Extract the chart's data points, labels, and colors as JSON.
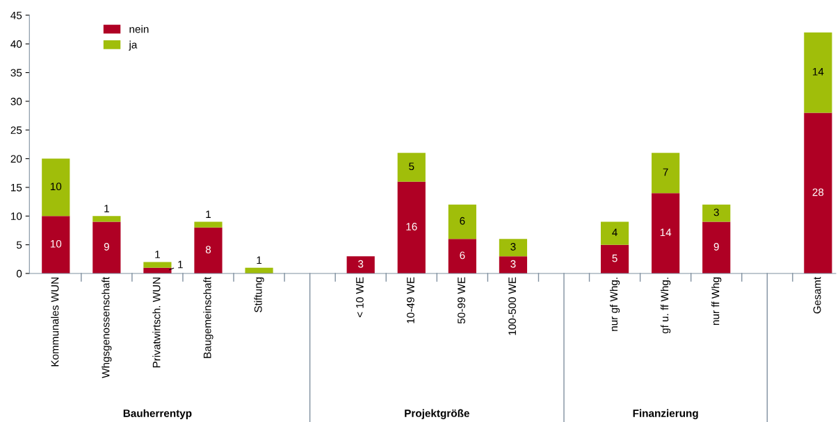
{
  "chart_data": {
    "type": "bar",
    "stacked": true,
    "categories": [
      "Kommunales WUN",
      "Whgsgenossenschaft",
      "Privatwirtsch. WUN",
      "Baugemeinschaft",
      "Stiftung",
      null,
      "< 10 WE",
      "10-49 WE",
      "50-99 WE",
      "100-500 WE",
      null,
      "nur gf Whg.",
      "gf u. ff Whg.",
      "nur ff Whg",
      null,
      "Gesamt"
    ],
    "series": [
      {
        "name": "nein",
        "color": "#af0024",
        "values": [
          10,
          9,
          1,
          8,
          null,
          null,
          3,
          16,
          6,
          3,
          null,
          5,
          14,
          9,
          null,
          28
        ]
      },
      {
        "name": "ja",
        "color": "#a0be0a",
        "values": [
          10,
          1,
          1,
          1,
          1,
          null,
          null,
          5,
          6,
          3,
          null,
          4,
          7,
          3,
          null,
          14
        ]
      }
    ],
    "ylim": [
      0,
      45
    ],
    "yticks": [
      0,
      5,
      10,
      15,
      20,
      25,
      30,
      35,
      40,
      45
    ],
    "data_labels": true,
    "legend": "top left",
    "grid": false,
    "annotations": [
      "Bauherrentyp",
      "Projektgröße",
      "Finanzierung"
    ]
  }
}
